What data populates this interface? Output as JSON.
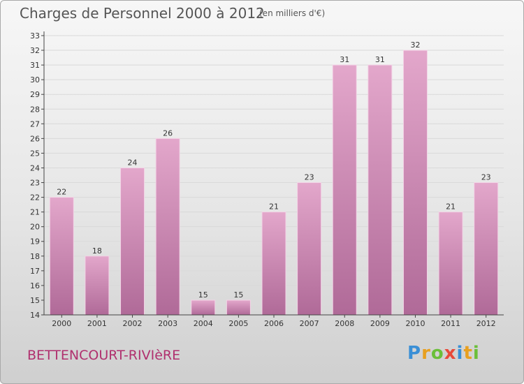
{
  "header": {
    "title": "Charges de Personnel 2000 à 2012",
    "subtitle": "(en milliers d'€)"
  },
  "footer": {
    "commune": "BETTENCOURT-RIVIèRE",
    "logo_letters": [
      "P",
      "r",
      "o",
      "x",
      "i",
      "t",
      "i"
    ],
    "logo_colors": [
      "#3a8fd6",
      "#e8a020",
      "#6bbf3a",
      "#e84a3a",
      "#3a8fd6",
      "#e8a020",
      "#6bbf3a"
    ]
  },
  "colors": {
    "bar_top": "#e3a7cb",
    "bar_bottom": "#b06a98",
    "bar_edge": "#f3d3e6",
    "axis": "#444444",
    "grid": "#d9d9d9",
    "text": "#333333"
  },
  "chart_data": {
    "type": "bar",
    "title": "Charges de Personnel 2000 à 2012",
    "subtitle": "(en milliers d'€)",
    "categories": [
      "2000",
      "2001",
      "2002",
      "2003",
      "2004",
      "2005",
      "2006",
      "2007",
      "2008",
      "2009",
      "2010",
      "2011",
      "2012"
    ],
    "values": [
      22,
      18,
      24,
      26,
      15,
      15,
      21,
      23,
      31,
      31,
      32,
      21,
      23
    ],
    "ylim": [
      14,
      33
    ],
    "yticks": [
      14,
      15,
      16,
      17,
      18,
      19,
      20,
      21,
      22,
      23,
      24,
      25,
      26,
      27,
      28,
      29,
      30,
      31,
      32,
      33
    ],
    "grid": true,
    "legend": "none"
  }
}
